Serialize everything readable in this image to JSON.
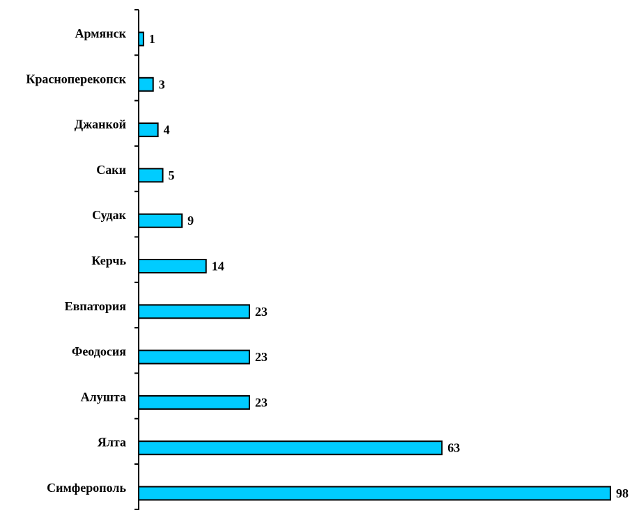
{
  "chart_data": {
    "type": "bar",
    "orientation": "horizontal",
    "categories": [
      "Армянск",
      "Красноперекопск",
      "Джанкой",
      "Саки",
      "Судак",
      "Керчь",
      "Евпатория",
      "Феодосия",
      "Алушта",
      "Ялта",
      "Симферополь"
    ],
    "values": [
      1,
      3,
      4,
      5,
      9,
      14,
      23,
      23,
      23,
      63,
      98
    ],
    "data_labels": [
      "1",
      "3",
      "4",
      "5",
      "9",
      "14",
      "23",
      "23",
      "23",
      "63",
      "98"
    ],
    "xlim": [
      0,
      98
    ],
    "grid": false,
    "legend": "none",
    "bar_color": "#00CCFF",
    "bar_edge_color": "#000000",
    "axis_color": "#000000"
  }
}
